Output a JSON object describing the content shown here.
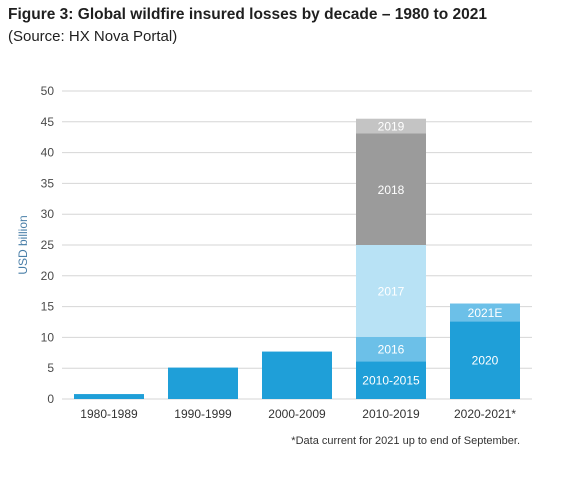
{
  "title": "Figure 3: Global wildfire insured losses by decade – 1980 to 2021",
  "subtitle": "(Source: HX Nova Portal)",
  "footnote": "*Data current for 2021 up to end of September.",
  "chart_data": {
    "type": "bar",
    "stacked": true,
    "title": "Figure 3: Global wildfire insured losses by decade – 1980 to 2021",
    "subtitle": "(Source: HX Nova Portal)",
    "xlabel": "",
    "ylabel": "USD billion",
    "ylim": [
      0,
      50
    ],
    "yticks": [
      0,
      5,
      10,
      15,
      20,
      25,
      30,
      35,
      40,
      45,
      50
    ],
    "grid": true,
    "categories": [
      "1980-1989",
      "1990-1999",
      "2000-2009",
      "2010-2019",
      "2020-2021*"
    ],
    "stacks": [
      [
        {
          "label": "",
          "value": 0.8,
          "color": "#1f9fd8"
        }
      ],
      [
        {
          "label": "",
          "value": 5.1,
          "color": "#1f9fd8"
        }
      ],
      [
        {
          "label": "",
          "value": 7.7,
          "color": "#1f9fd8"
        }
      ],
      [
        {
          "label": "2010-2015",
          "value": 6.1,
          "color": "#1f9fd8"
        },
        {
          "label": "2016",
          "value": 4.0,
          "color": "#6cc0e8"
        },
        {
          "label": "2017",
          "value": 14.9,
          "color": "#b8e2f5"
        },
        {
          "label": "2018",
          "value": 18.1,
          "color": "#9b9b9b"
        },
        {
          "label": "2019",
          "value": 2.4,
          "color": "#c4c4c4"
        }
      ],
      [
        {
          "label": "2020",
          "value": 12.6,
          "color": "#1f9fd8"
        },
        {
          "label": "2021E",
          "value": 2.9,
          "color": "#6cc0e8"
        }
      ]
    ]
  }
}
